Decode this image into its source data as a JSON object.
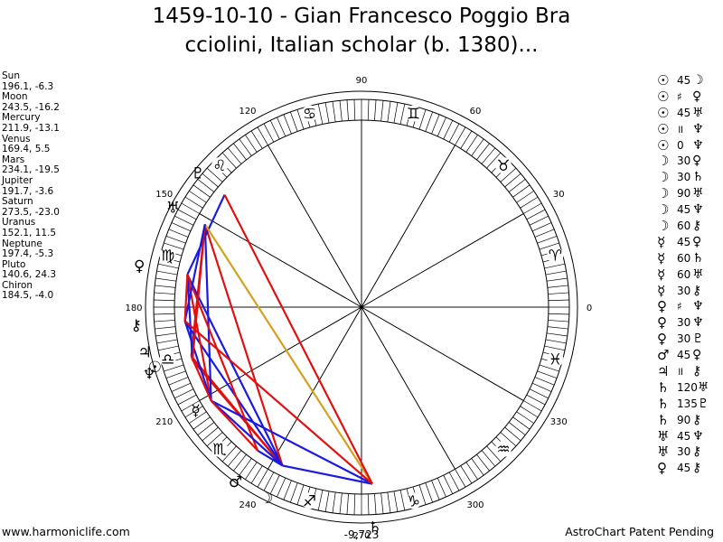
{
  "title": {
    "line1": "1459-10-10 - Gian Francesco Poggio Bra",
    "line2": "cciolini, Italian scholar (b. 1380)..."
  },
  "planets": [
    {
      "name": "Sun",
      "pos": "196.1, -6.3"
    },
    {
      "name": "Moon",
      "pos": "243.5, -16.2"
    },
    {
      "name": "Mercury",
      "pos": "211.9, -13.1"
    },
    {
      "name": "Venus",
      "pos": "169.4, 5.5"
    },
    {
      "name": "Mars",
      "pos": "234.1, -19.5"
    },
    {
      "name": "Jupiter",
      "pos": "191.7, -3.6"
    },
    {
      "name": "Saturn",
      "pos": "273.5, -23.0"
    },
    {
      "name": "Uranus",
      "pos": "152.1, 11.5"
    },
    {
      "name": "Neptune",
      "pos": "197.4, -5.3"
    },
    {
      "name": "Pluto",
      "pos": "140.6, 24.3"
    },
    {
      "name": "Chiron",
      "pos": "184.5, -4.0"
    }
  ],
  "aspects": [
    {
      "p1": "☉",
      "n": "45",
      "p2": "☽"
    },
    {
      "p1": "☉",
      "n": "♯",
      "p2": "♀"
    },
    {
      "p1": "☉",
      "n": "45",
      "p2": "♅"
    },
    {
      "p1": "☉",
      "n": "॥",
      "p2": "♆"
    },
    {
      "p1": "☉",
      "n": "0",
      "p2": "♆"
    },
    {
      "p1": "☽",
      "n": "30",
      "p2": "♀"
    },
    {
      "p1": "☽",
      "n": "30",
      "p2": "♄"
    },
    {
      "p1": "☽",
      "n": "90",
      "p2": "♅"
    },
    {
      "p1": "☽",
      "n": "45",
      "p2": "♆"
    },
    {
      "p1": "☽",
      "n": "60",
      "p2": "⚷"
    },
    {
      "p1": "☿",
      "n": "45",
      "p2": "♀"
    },
    {
      "p1": "☿",
      "n": "60",
      "p2": "♄"
    },
    {
      "p1": "☿",
      "n": "60",
      "p2": "♅"
    },
    {
      "p1": "☿",
      "n": "30",
      "p2": "⚷"
    },
    {
      "p1": "♀",
      "n": "♯",
      "p2": "♆"
    },
    {
      "p1": "♀",
      "n": "30",
      "p2": "♆"
    },
    {
      "p1": "♀",
      "n": "30",
      "p2": "♇"
    },
    {
      "p1": "♂",
      "n": "45",
      "p2": "♀"
    },
    {
      "p1": "♃",
      "n": "॥",
      "p2": "⚷"
    },
    {
      "p1": "♄",
      "n": "120",
      "p2": "♅"
    },
    {
      "p1": "♄",
      "n": "135",
      "p2": "♇"
    },
    {
      "p1": "♄",
      "n": "90",
      "p2": "⚷"
    },
    {
      "p1": "♅",
      "n": "45",
      "p2": "♆"
    },
    {
      "p1": "♅",
      "n": "30",
      "p2": "⚷"
    },
    {
      "p1": "♀",
      "n": "45",
      "p2": "⚷"
    }
  ],
  "wheel": {
    "degree_labels": [
      "0",
      "30",
      "60",
      "90",
      "120",
      "150",
      "180",
      "210",
      "240",
      "270",
      "300",
      "330"
    ],
    "bottom_readout": "-9,723",
    "zodiac": [
      {
        "deg": 15,
        "glyph": "♈"
      },
      {
        "deg": 45,
        "glyph": "♉"
      },
      {
        "deg": 75,
        "glyph": "♊"
      },
      {
        "deg": 105,
        "glyph": "♋"
      },
      {
        "deg": 135,
        "glyph": "♌"
      },
      {
        "deg": 165,
        "glyph": "♍"
      },
      {
        "deg": 195,
        "glyph": "♎"
      },
      {
        "deg": 225,
        "glyph": "♏"
      },
      {
        "deg": 255,
        "glyph": "♐"
      },
      {
        "deg": 285,
        "glyph": "♑"
      },
      {
        "deg": 315,
        "glyph": "♒"
      },
      {
        "deg": 345,
        "glyph": "♓"
      }
    ],
    "bodies": [
      {
        "name": "Sun",
        "glyph": "☉",
        "deg": 196.1
      },
      {
        "name": "Moon",
        "glyph": "☽",
        "deg": 243.5
      },
      {
        "name": "Mercury",
        "glyph": "☿",
        "deg": 211.9
      },
      {
        "name": "Venus",
        "glyph": "♀",
        "deg": 169.4
      },
      {
        "name": "Mars",
        "glyph": "♂",
        "deg": 234.1
      },
      {
        "name": "Jupiter",
        "glyph": "♃",
        "deg": 191.7
      },
      {
        "name": "Saturn",
        "glyph": "♄",
        "deg": 273.5
      },
      {
        "name": "Uranus",
        "glyph": "♅",
        "deg": 152.1
      },
      {
        "name": "Neptune",
        "glyph": "♆",
        "deg": 197.4
      },
      {
        "name": "Pluto",
        "glyph": "♇",
        "deg": 140.6
      },
      {
        "name": "Chiron",
        "glyph": "⚷",
        "deg": 184.5
      }
    ],
    "aspect_lines": [
      {
        "a": "Sun",
        "b": "Moon",
        "color": "#e01010"
      },
      {
        "a": "Sun",
        "b": "Uranus",
        "color": "#e01010"
      },
      {
        "a": "Moon",
        "b": "Venus",
        "color": "#1a1ae0"
      },
      {
        "a": "Moon",
        "b": "Saturn",
        "color": "#1a1ae0"
      },
      {
        "a": "Moon",
        "b": "Uranus",
        "color": "#e01010"
      },
      {
        "a": "Moon",
        "b": "Neptune",
        "color": "#e01010"
      },
      {
        "a": "Moon",
        "b": "Chiron",
        "color": "#1a1ae0"
      },
      {
        "a": "Mercury",
        "b": "Venus",
        "color": "#e01010"
      },
      {
        "a": "Mercury",
        "b": "Saturn",
        "color": "#1a1ae0"
      },
      {
        "a": "Mercury",
        "b": "Uranus",
        "color": "#1a1ae0"
      },
      {
        "a": "Mercury",
        "b": "Chiron",
        "color": "#1a1ae0"
      },
      {
        "a": "Venus",
        "b": "Neptune",
        "color": "#1a1ae0"
      },
      {
        "a": "Venus",
        "b": "Pluto",
        "color": "#1a1ae0"
      },
      {
        "a": "Mars",
        "b": "Venus",
        "color": "#e01010"
      },
      {
        "a": "Saturn",
        "b": "Uranus",
        "color": "#d4a020"
      },
      {
        "a": "Saturn",
        "b": "Pluto",
        "color": "#e01010"
      },
      {
        "a": "Saturn",
        "b": "Chiron",
        "color": "#e01010"
      },
      {
        "a": "Uranus",
        "b": "Neptune",
        "color": "#e01010"
      },
      {
        "a": "Uranus",
        "b": "Chiron",
        "color": "#1a1ae0"
      },
      {
        "a": "Venus",
        "b": "Chiron",
        "color": "#e01010"
      },
      {
        "a": "Sun",
        "b": "Mercury",
        "color": "#e01010"
      },
      {
        "a": "Moon",
        "b": "Mercury",
        "color": "#1a1ae0"
      },
      {
        "a": "Mars",
        "b": "Mercury",
        "color": "#e01010"
      },
      {
        "a": "Moon",
        "b": "Mars",
        "color": "#1a1ae0"
      }
    ]
  },
  "footer": {
    "left": "www.harmoniclife.com",
    "right": "AstroChart Patent Pending"
  }
}
